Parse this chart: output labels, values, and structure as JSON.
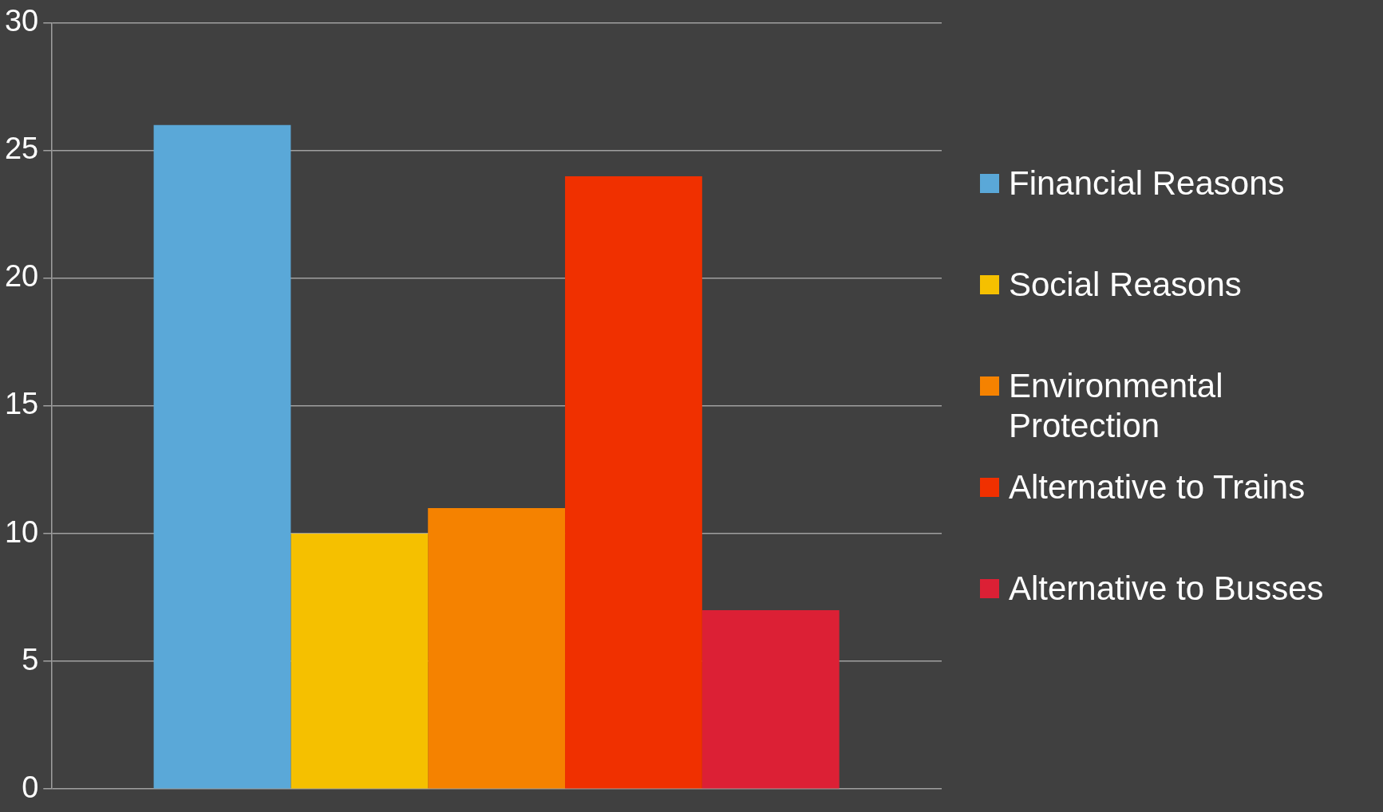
{
  "chart_data": {
    "type": "bar",
    "categories": [
      null
    ],
    "series": [
      {
        "name": "Financial Reasons",
        "color": "#5aa8d8",
        "values": [
          26
        ]
      },
      {
        "name": "Social Reasons",
        "color": "#f5c000",
        "values": [
          10
        ]
      },
      {
        "name": "Environmental Protection",
        "color": "#f58200",
        "values": [
          11
        ]
      },
      {
        "name": "Alternative to Trains",
        "color": "#f03000",
        "values": [
          24
        ]
      },
      {
        "name": "Alternative to Busses",
        "color": "#dc2035",
        "values": [
          7
        ]
      }
    ],
    "ylim": [
      0,
      30
    ],
    "yticks": [
      0,
      5,
      10,
      15,
      20,
      25,
      30
    ],
    "grid": "y",
    "legend": "right",
    "tick_labels": "y"
  }
}
